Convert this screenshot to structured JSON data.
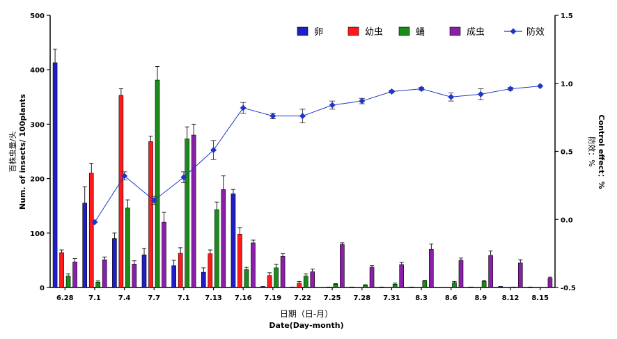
{
  "chart_data": {
    "type": "bar",
    "categories": [
      "6.28",
      "7.1",
      "7.4",
      "7.7",
      "7.1",
      "7.13",
      "7.16",
      "7.19",
      "7.22",
      "7.25",
      "7.28",
      "7.31",
      "8.3",
      "8.6",
      "8.9",
      "8.12",
      "8.15"
    ],
    "xlabel_cn": "日期（日-月）",
    "xlabel_en": "Date(Day-month)",
    "ylabel_left_cn": "百株虫量/头",
    "ylabel_left_en": "Num. of insects/ 100plants",
    "ylabel_right_cn": "防效：%",
    "ylabel_right_en": "Control effect：%",
    "ylim_left": [
      0,
      500
    ],
    "ylim_right": [
      -0.5,
      1.5
    ],
    "yticks_left": [
      "0",
      "100",
      "200",
      "300",
      "400",
      "500"
    ],
    "yticks_right": [
      "-0.5",
      "0.0",
      "0.5",
      "1.0",
      "1.5"
    ],
    "legend_position": "top-right",
    "series": [
      {
        "name": "卵",
        "color": "#1f1fc8",
        "values": [
          413,
          155,
          90,
          60,
          40,
          28,
          172,
          2,
          1,
          0,
          1,
          1,
          1,
          0,
          1,
          2,
          1
        ],
        "errors": [
          25,
          30,
          10,
          12,
          10,
          8,
          8,
          0,
          0,
          0,
          0,
          0,
          0,
          0,
          0,
          0,
          0
        ]
      },
      {
        "name": "幼虫",
        "color": "#ff1a1a",
        "values": [
          64,
          210,
          353,
          268,
          63,
          62,
          98,
          22,
          8,
          1,
          0,
          0,
          0,
          0,
          0,
          0,
          0
        ],
        "errors": [
          5,
          18,
          12,
          10,
          10,
          7,
          12,
          5,
          3,
          0,
          0,
          0,
          0,
          0,
          0,
          0,
          0
        ]
      },
      {
        "name": "蛹",
        "color": "#1a8c1a",
        "values": [
          21,
          10,
          146,
          381,
          273,
          143,
          33,
          36,
          21,
          6,
          4,
          6,
          12,
          9,
          11,
          1,
          0
        ],
        "errors": [
          4,
          2,
          15,
          25,
          22,
          14,
          4,
          7,
          4,
          1,
          1,
          2,
          1,
          2,
          2,
          0,
          0
        ]
      },
      {
        "name": "成虫",
        "color": "#8a1fa8",
        "values": [
          47,
          51,
          43,
          120,
          280,
          180,
          82,
          57,
          29,
          79,
          37,
          42,
          70,
          50,
          59,
          45,
          17
        ],
        "errors": [
          6,
          5,
          6,
          18,
          20,
          25,
          5,
          5,
          5,
          3,
          3,
          4,
          10,
          4,
          8,
          6,
          2
        ]
      }
    ],
    "line_series": {
      "name": "防效",
      "color": "#2035c8",
      "start_index": 1,
      "values": [
        -0.02,
        0.32,
        0.14,
        0.31,
        0.51,
        0.82,
        0.76,
        0.76,
        0.84,
        0.87,
        0.94,
        0.96,
        0.9,
        0.92,
        0.96,
        0.98
      ],
      "errors": [
        0,
        0.03,
        0.03,
        0.04,
        0.07,
        0.04,
        0.02,
        0.05,
        0.03,
        0.02,
        0.01,
        0.01,
        0.03,
        0.04,
        0.01,
        0
      ]
    }
  }
}
